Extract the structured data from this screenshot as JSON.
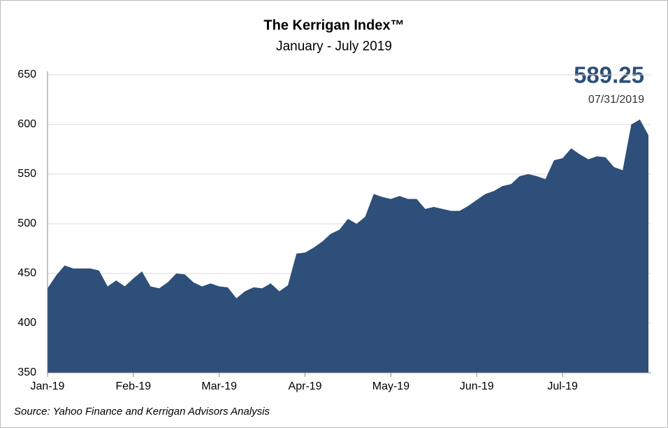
{
  "chart_data": {
    "type": "area",
    "title": "The Kerrigan Index™",
    "subtitle": "January - July 2019",
    "annotation": {
      "value": "589.25",
      "date": "07/31/2019"
    },
    "source": "Source: Yahoo Finance and Kerrigan Advisors Analysis",
    "color": "#2d4f79",
    "categories": [
      "Jan-19",
      null,
      null,
      null,
      null,
      null,
      null,
      null,
      null,
      null,
      "Feb-19",
      null,
      null,
      null,
      null,
      null,
      null,
      null,
      null,
      null,
      "Mar-19",
      null,
      null,
      null,
      null,
      null,
      null,
      null,
      null,
      null,
      "Apr-19",
      null,
      null,
      null,
      null,
      null,
      null,
      null,
      null,
      null,
      "May-19",
      null,
      null,
      null,
      null,
      null,
      null,
      null,
      null,
      null,
      "Jun-19",
      null,
      null,
      null,
      null,
      null,
      null,
      null,
      null,
      null,
      "Jul-19",
      null,
      null,
      null,
      null,
      null,
      null,
      null,
      null,
      null,
      null
    ],
    "values": [
      435,
      448,
      458,
      455,
      455,
      455,
      453,
      437,
      443,
      437,
      445,
      452,
      437,
      435,
      441,
      450,
      449,
      441,
      437,
      440,
      437,
      436,
      425,
      432,
      436,
      435,
      440,
      432,
      438,
      470,
      471,
      476,
      482,
      490,
      494,
      505,
      500,
      507,
      530,
      527,
      525,
      528,
      525,
      525,
      515,
      517,
      515,
      513,
      513,
      518,
      524,
      530,
      533,
      538,
      540,
      548,
      550,
      548,
      545,
      564,
      566,
      576,
      570,
      565,
      568,
      567,
      557,
      554,
      600,
      605,
      589.25
    ],
    "ylim": [
      350,
      650
    ],
    "yticks": [
      350,
      400,
      450,
      500,
      550,
      600,
      650
    ],
    "grid": true
  }
}
